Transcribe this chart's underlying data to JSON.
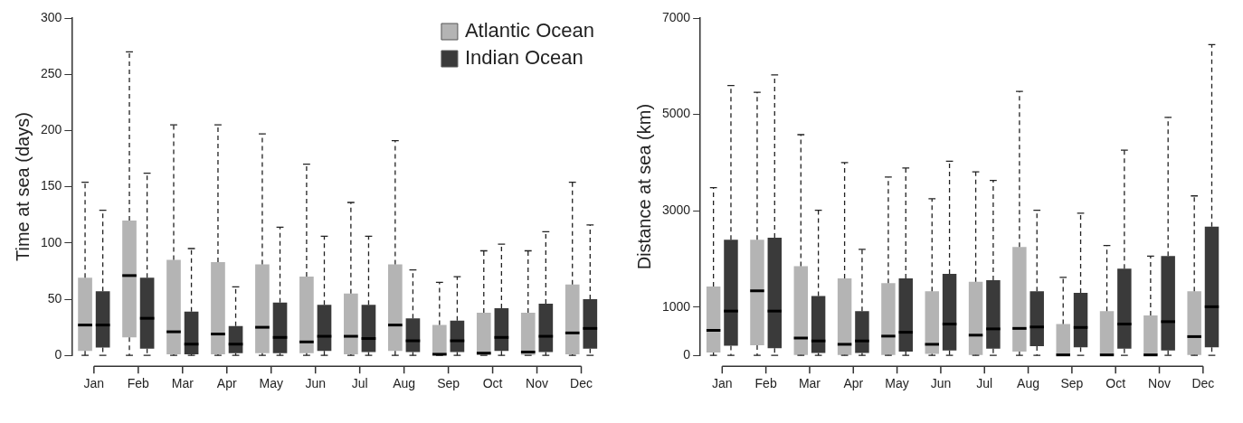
{
  "chart_data": [
    {
      "type": "box",
      "ylabel": "Time at sea (days)",
      "categories": [
        "Jan",
        "Feb",
        "Mar",
        "Apr",
        "May",
        "Jun",
        "Jul",
        "Aug",
        "Sep",
        "Oct",
        "Nov",
        "Dec"
      ],
      "ylim": [
        0,
        300
      ],
      "yticks": [
        0,
        50,
        100,
        150,
        200,
        250,
        300
      ],
      "legend": "top right",
      "series": [
        {
          "name": "Atlantic Ocean",
          "color": "#b4b4b4",
          "boxes": [
            {
              "low": 0,
              "q1": 4,
              "median": 27,
              "q3": 69,
              "high": 154
            },
            {
              "low": 0,
              "q1": 16,
              "median": 71,
              "q3": 120,
              "high": 270
            },
            {
              "low": 0,
              "q1": 1,
              "median": 21,
              "q3": 85,
              "high": 205
            },
            {
              "low": 0,
              "q1": 1,
              "median": 19,
              "q3": 83,
              "high": 205
            },
            {
              "low": 0,
              "q1": 2,
              "median": 25,
              "q3": 81,
              "high": 197
            },
            {
              "low": 0,
              "q1": 2,
              "median": 12,
              "q3": 70,
              "high": 170
            },
            {
              "low": 0,
              "q1": 1,
              "median": 17,
              "q3": 55,
              "high": 136
            },
            {
              "low": 0,
              "q1": 4,
              "median": 27,
              "q3": 81,
              "high": 191
            },
            {
              "low": 0,
              "q1": 0,
              "median": 1,
              "q3": 27,
              "high": 65
            },
            {
              "low": 0,
              "q1": 0,
              "median": 2,
              "q3": 38,
              "high": 93
            },
            {
              "low": 0,
              "q1": 0,
              "median": 3,
              "q3": 38,
              "high": 93
            },
            {
              "low": 0,
              "q1": 1,
              "median": 20,
              "q3": 63,
              "high": 154
            }
          ]
        },
        {
          "name": "Indian Ocean",
          "color": "#3a3a3a",
          "boxes": [
            {
              "low": 0,
              "q1": 7,
              "median": 27,
              "q3": 57,
              "high": 129
            },
            {
              "low": 0,
              "q1": 6,
              "median": 33,
              "q3": 69,
              "high": 162
            },
            {
              "low": 0,
              "q1": 1,
              "median": 10,
              "q3": 39,
              "high": 95
            },
            {
              "low": 0,
              "q1": 2,
              "median": 10,
              "q3": 26,
              "high": 61
            },
            {
              "low": 0,
              "q1": 2,
              "median": 16,
              "q3": 47,
              "high": 114
            },
            {
              "low": 0,
              "q1": 4,
              "median": 17,
              "q3": 45,
              "high": 106
            },
            {
              "low": 0,
              "q1": 3,
              "median": 15,
              "q3": 45,
              "high": 106
            },
            {
              "low": 0,
              "q1": 3,
              "median": 13,
              "q3": 33,
              "high": 76
            },
            {
              "low": 0,
              "q1": 3,
              "median": 13,
              "q3": 31,
              "high": 70
            },
            {
              "low": 0,
              "q1": 4,
              "median": 16,
              "q3": 42,
              "high": 99
            },
            {
              "low": 0,
              "q1": 3,
              "median": 17,
              "q3": 46,
              "high": 110
            },
            {
              "low": 0,
              "q1": 6,
              "median": 24,
              "q3": 50,
              "high": 116
            }
          ]
        }
      ]
    },
    {
      "type": "box",
      "ylabel": "Distance at sea (km)",
      "categories": [
        "Jan",
        "Feb",
        "Mar",
        "Apr",
        "May",
        "Jun",
        "Jul",
        "Aug",
        "Sep",
        "Oct",
        "Nov",
        "Dec"
      ],
      "ylim": [
        0,
        7000
      ],
      "yticks": [
        0,
        1000,
        3000,
        5000,
        7000
      ],
      "series": [
        {
          "color": "#b4b4b4",
          "boxes": [
            {
              "low": 0,
              "q1": 60,
              "median": 520,
              "q3": 1430,
              "high": 3480
            },
            {
              "low": 0,
              "q1": 210,
              "median": 1340,
              "q3": 2400,
              "high": 5460
            },
            {
              "low": 0,
              "q1": 10,
              "median": 360,
              "q3": 1850,
              "high": 4580
            },
            {
              "low": 0,
              "q1": 10,
              "median": 230,
              "q3": 1600,
              "high": 4000
            },
            {
              "low": 0,
              "q1": 10,
              "median": 400,
              "q3": 1500,
              "high": 3700
            },
            {
              "low": 0,
              "q1": 30,
              "median": 230,
              "q3": 1330,
              "high": 3250
            },
            {
              "low": 0,
              "q1": 10,
              "median": 420,
              "q3": 1530,
              "high": 3810
            },
            {
              "low": 0,
              "q1": 80,
              "median": 560,
              "q3": 2250,
              "high": 5480
            },
            {
              "low": 0,
              "q1": 0,
              "median": 10,
              "q3": 650,
              "high": 1620
            },
            {
              "low": 0,
              "q1": 0,
              "median": 10,
              "q3": 920,
              "high": 2280
            },
            {
              "low": 0,
              "q1": 0,
              "median": 10,
              "q3": 830,
              "high": 2060
            },
            {
              "low": 0,
              "q1": 10,
              "median": 390,
              "q3": 1330,
              "high": 3310
            }
          ]
        },
        {
          "color": "#3a3a3a",
          "boxes": [
            {
              "low": 0,
              "q1": 200,
              "median": 920,
              "q3": 2400,
              "high": 5600
            },
            {
              "low": 0,
              "q1": 150,
              "median": 920,
              "q3": 2440,
              "high": 5820
            },
            {
              "low": 0,
              "q1": 50,
              "median": 300,
              "q3": 1230,
              "high": 3010
            },
            {
              "low": 0,
              "q1": 50,
              "median": 300,
              "q3": 920,
              "high": 2200
            },
            {
              "low": 0,
              "q1": 80,
              "median": 480,
              "q3": 1600,
              "high": 3890
            },
            {
              "low": 0,
              "q1": 100,
              "median": 650,
              "q3": 1690,
              "high": 4030
            },
            {
              "low": 0,
              "q1": 140,
              "median": 550,
              "q3": 1560,
              "high": 3630
            },
            {
              "low": 0,
              "q1": 190,
              "median": 590,
              "q3": 1330,
              "high": 3010
            },
            {
              "low": 0,
              "q1": 170,
              "median": 580,
              "q3": 1300,
              "high": 2950
            },
            {
              "low": 0,
              "q1": 140,
              "median": 650,
              "q3": 1800,
              "high": 4260
            },
            {
              "low": 0,
              "q1": 100,
              "median": 700,
              "q3": 2060,
              "high": 4940
            },
            {
              "low": 0,
              "q1": 170,
              "median": 1010,
              "q3": 2670,
              "high": 6450
            }
          ]
        }
      ]
    }
  ]
}
